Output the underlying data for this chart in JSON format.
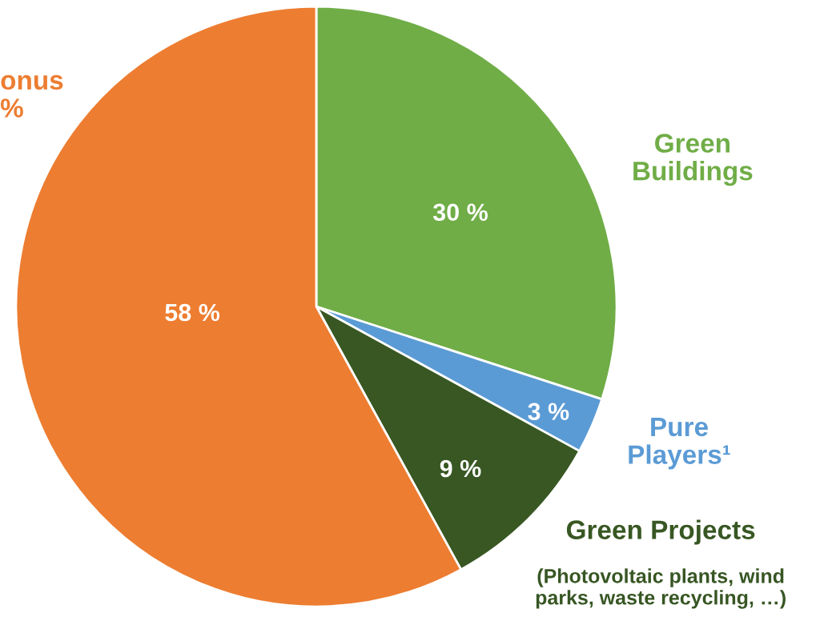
{
  "chart_data": {
    "type": "pie",
    "categories": [
      "Green\nBuildings",
      "Pure\nPlayers¹",
      "Green Projects",
      "onus\n%"
    ],
    "values": [
      30,
      3,
      9,
      58
    ],
    "colors": [
      "#70ad47",
      "#5b9bd5",
      "#385723",
      "#ed7d31"
    ],
    "value_labels": [
      "30 %",
      "3 %",
      "9 %",
      "58 %"
    ],
    "annotations": [
      "(Photovoltaic plants, wind\nparks, waste recycling, …)"
    ]
  }
}
